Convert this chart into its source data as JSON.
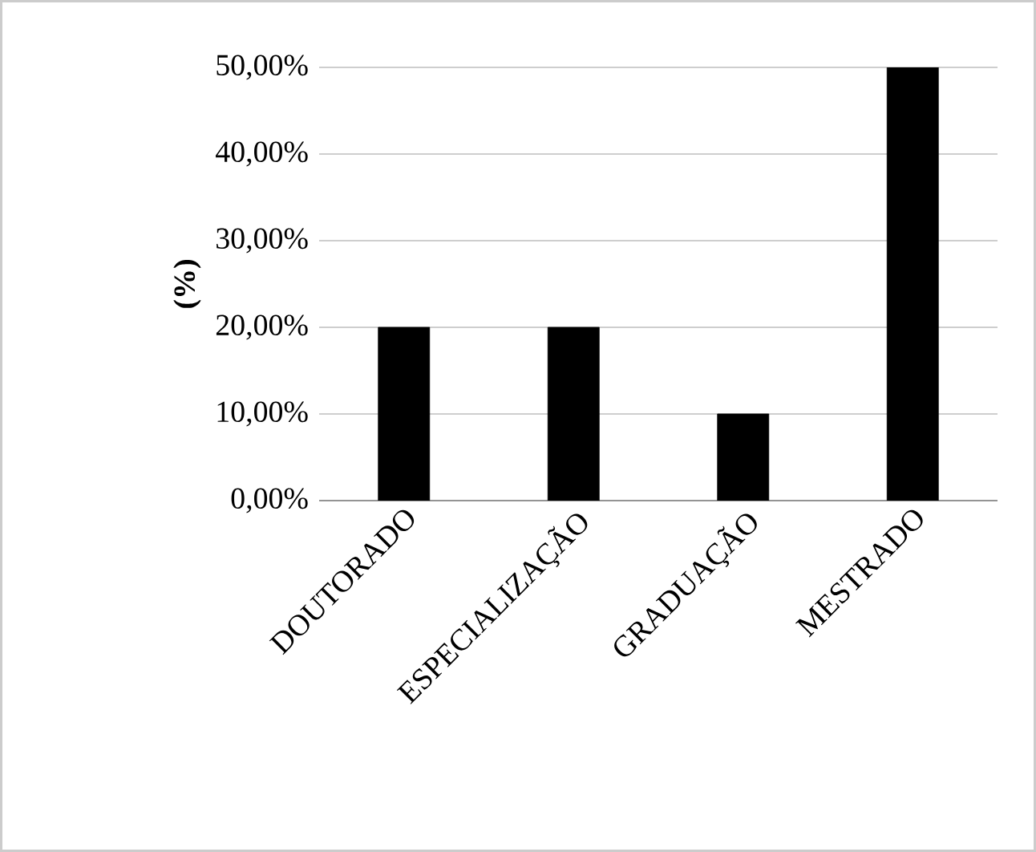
{
  "chart_data": {
    "type": "bar",
    "ylabel": "**(%)**",
    "categories": [
      "DOUTORADO",
      "ESPECIALIZAÇÃO",
      "GRADUAÇÃO",
      "MESTRADO"
    ],
    "values": [
      20,
      20,
      10,
      50
    ],
    "color": "#000000",
    "ylim": [
      0,
      50
    ],
    "yticks": [
      {
        "value": 0,
        "label": "0,00%"
      },
      {
        "value": 10,
        "label": "10,00%"
      },
      {
        "value": 20,
        "label": "20,00%"
      },
      {
        "value": 30,
        "label": "30,00%"
      },
      {
        "value": 40,
        "label": "40,00%"
      },
      {
        "value": 50,
        "label": "50,00%"
      }
    ],
    "grid": "y"
  }
}
